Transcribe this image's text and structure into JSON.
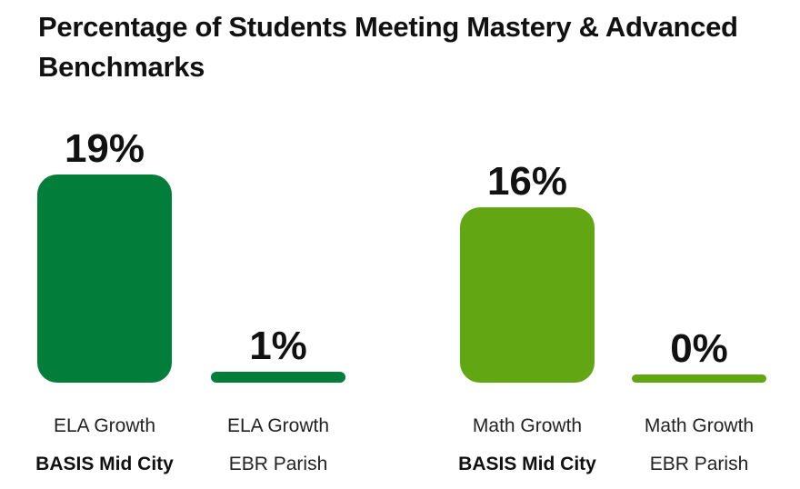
{
  "chart_data": {
    "type": "bar",
    "title": "Percentage of Students Meeting Mastery & Advanced Benchmarks",
    "value_suffix": "%",
    "ylim": [
      0,
      19
    ],
    "grid": false,
    "bars": [
      {
        "line1": "ELA Growth",
        "line2": "BASIS Mid City",
        "line2_bold": true,
        "value": 19,
        "label": "19%",
        "color": "#037d3a"
      },
      {
        "line1": "ELA Growth",
        "line2": "EBR Parish",
        "line2_bold": false,
        "value": 1,
        "label": "1%",
        "color": "#037d3a"
      },
      {
        "line1": "Math Growth",
        "line2": "BASIS Mid City",
        "line2_bold": true,
        "value": 16,
        "label": "16%",
        "color": "#62a613"
      },
      {
        "line1": "Math Growth",
        "line2": "EBR Parish",
        "line2_bold": false,
        "value": 0,
        "label": "0%",
        "color": "#62a613"
      }
    ]
  }
}
